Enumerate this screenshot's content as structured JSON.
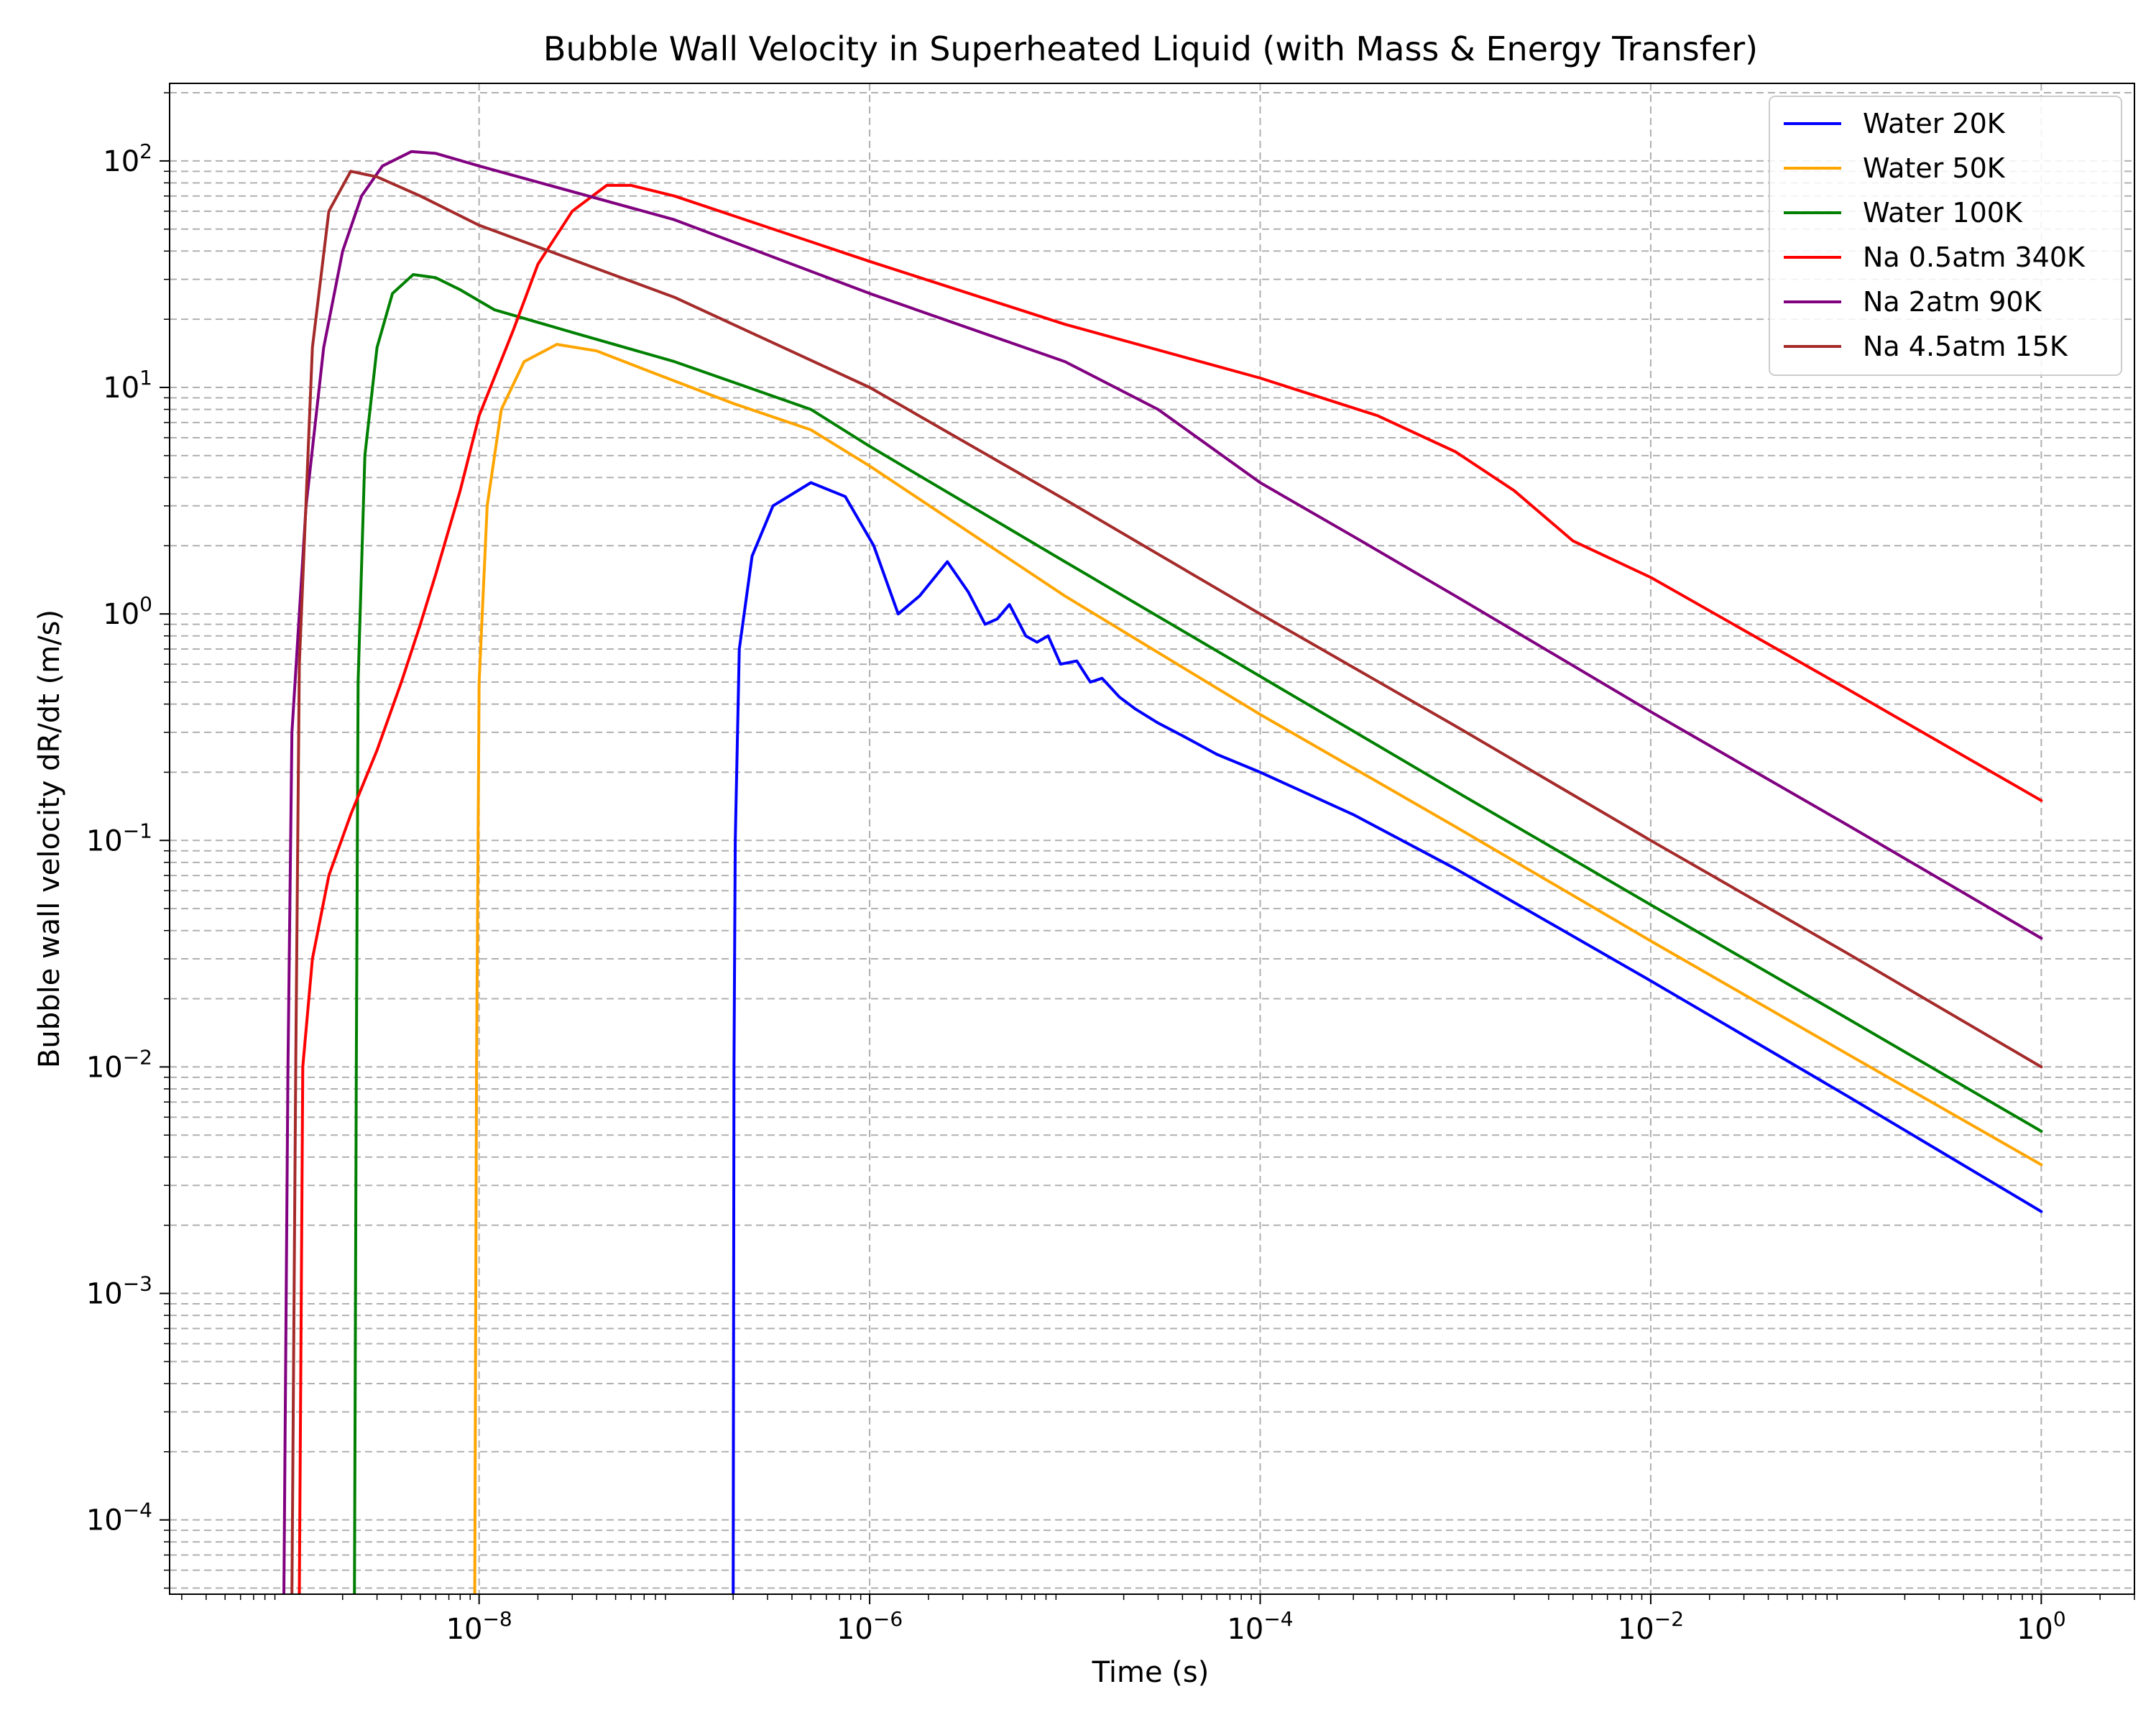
{
  "chart_data": {
    "type": "line",
    "title": "Bubble Wall Velocity in Superheated Liquid (with Mass & Energy Transfer)",
    "xlabel": "Time (s)",
    "ylabel": "Bubble wall velocity dR/dt (m/s)",
    "x_scale": "log",
    "y_scale": "log",
    "xlim": [
      2.6e-10,
      3.0
    ],
    "ylim": [
      4.7e-05,
      220
    ],
    "x_ticks": [
      {
        "value": 1e-08,
        "base": "10",
        "exp": "−8"
      },
      {
        "value": 1e-06,
        "base": "10",
        "exp": "−6"
      },
      {
        "value": 0.0001,
        "base": "10",
        "exp": "−4"
      },
      {
        "value": 0.01,
        "base": "10",
        "exp": "−2"
      },
      {
        "value": 1,
        "base": "10",
        "exp": "0"
      }
    ],
    "y_ticks": [
      {
        "value": 0.0001,
        "base": "10",
        "exp": "−4"
      },
      {
        "value": 0.001,
        "base": "10",
        "exp": "−3"
      },
      {
        "value": 0.01,
        "base": "10",
        "exp": "−2"
      },
      {
        "value": 0.1,
        "base": "10",
        "exp": "−1"
      },
      {
        "value": 1,
        "base": "10",
        "exp": "0"
      },
      {
        "value": 10,
        "base": "10",
        "exp": "1"
      },
      {
        "value": 100,
        "base": "10",
        "exp": "2"
      }
    ],
    "grid": true,
    "legend_position": "top-right",
    "series": [
      {
        "name": "Water 20K",
        "color": "#0000ff",
        "points": [
          [
            2e-07,
            4.7e-05
          ],
          [
            2.02e-07,
            0.01
          ],
          [
            2.05e-07,
            0.1
          ],
          [
            2.15e-07,
            0.7
          ],
          [
            2.5e-07,
            1.8
          ],
          [
            3.2e-07,
            3.0
          ],
          [
            5e-07,
            3.8
          ],
          [
            7.5e-07,
            3.3
          ],
          [
            1.05e-06,
            2.0
          ],
          [
            1.4e-06,
            1.0
          ],
          [
            1.8e-06,
            1.2
          ],
          [
            2.5e-06,
            1.7
          ],
          [
            3.2e-06,
            1.25
          ],
          [
            3.9e-06,
            0.9
          ],
          [
            4.5e-06,
            0.95
          ],
          [
            5.2e-06,
            1.1
          ],
          [
            6.3e-06,
            0.8
          ],
          [
            7.2e-06,
            0.75
          ],
          [
            8.2e-06,
            0.8
          ],
          [
            9.5e-06,
            0.6
          ],
          [
            1.15e-05,
            0.62
          ],
          [
            1.35e-05,
            0.5
          ],
          [
            1.55e-05,
            0.52
          ],
          [
            1.9e-05,
            0.43
          ],
          [
            2.3e-05,
            0.38
          ],
          [
            3e-05,
            0.33
          ],
          [
            4e-05,
            0.29
          ],
          [
            6e-05,
            0.24
          ],
          [
            0.0001,
            0.2
          ],
          [
            0.0003,
            0.13
          ],
          [
            0.001,
            0.075
          ],
          [
            0.01,
            0.024
          ],
          [
            0.1,
            0.0075
          ],
          [
            1.0,
            0.0023
          ]
        ]
      },
      {
        "name": "Water 50K",
        "color": "#ffa500",
        "points": [
          [
            9.5e-09,
            4.7e-05
          ],
          [
            9.7e-09,
            0.01
          ],
          [
            1e-08,
            0.5
          ],
          [
            1.1e-08,
            3.0
          ],
          [
            1.3e-08,
            8.0
          ],
          [
            1.7e-08,
            13.0
          ],
          [
            2.5e-08,
            15.5
          ],
          [
            4e-08,
            14.5
          ],
          [
            8e-08,
            11.5
          ],
          [
            2e-07,
            8.5
          ],
          [
            5e-07,
            6.5
          ],
          [
            1e-06,
            4.5
          ],
          [
            1e-05,
            1.2
          ],
          [
            0.0001,
            0.36
          ],
          [
            0.001,
            0.115
          ],
          [
            0.01,
            0.036
          ],
          [
            0.1,
            0.0115
          ],
          [
            1.0,
            0.0037
          ]
        ]
      },
      {
        "name": "Water 100K",
        "color": "#008000",
        "points": [
          [
            2.3e-09,
            4.7e-05
          ],
          [
            2.35e-09,
            0.01
          ],
          [
            2.4e-09,
            0.5
          ],
          [
            2.6e-09,
            5.0
          ],
          [
            3e-09,
            15.0
          ],
          [
            3.6e-09,
            26.0
          ],
          [
            4.6e-09,
            31.5
          ],
          [
            6e-09,
            30.5
          ],
          [
            8e-09,
            27.0
          ],
          [
            1.2e-08,
            22.0
          ],
          [
            3e-08,
            17.5
          ],
          [
            1e-07,
            13.0
          ],
          [
            5e-07,
            8.0
          ],
          [
            1e-06,
            5.5
          ],
          [
            1e-05,
            1.7
          ],
          [
            0.0001,
            0.53
          ],
          [
            0.001,
            0.165
          ],
          [
            0.01,
            0.052
          ],
          [
            0.1,
            0.0165
          ],
          [
            1.0,
            0.0052
          ]
        ]
      },
      {
        "name": "Na 0.5atm 340K",
        "color": "#ff0000",
        "points": [
          [
            1.2e-09,
            4.7e-05
          ],
          [
            1.25e-09,
            0.01
          ],
          [
            1.4e-09,
            0.03
          ],
          [
            1.7e-09,
            0.07
          ],
          [
            2.2e-09,
            0.13
          ],
          [
            3e-09,
            0.25
          ],
          [
            4e-09,
            0.5
          ],
          [
            5e-09,
            0.9
          ],
          [
            6e-09,
            1.5
          ],
          [
            8e-09,
            3.5
          ],
          [
            1e-08,
            7.5
          ],
          [
            1.5e-08,
            18.0
          ],
          [
            2e-08,
            35.0
          ],
          [
            3e-08,
            60.0
          ],
          [
            4.5e-08,
            78.0
          ],
          [
            6e-08,
            78.0
          ],
          [
            1e-07,
            70.0
          ],
          [
            1e-06,
            36.0
          ],
          [
            1e-05,
            19.0
          ],
          [
            0.0001,
            11.0
          ],
          [
            0.0004,
            7.5
          ],
          [
            0.001,
            5.2
          ],
          [
            0.002,
            3.5
          ],
          [
            0.004,
            2.1
          ],
          [
            0.01,
            1.45
          ],
          [
            0.1,
            0.47
          ],
          [
            1.0,
            0.15
          ]
        ]
      },
      {
        "name": "Na 2atm 90K",
        "color": "#800080",
        "points": [
          [
            1e-09,
            4.7e-05
          ],
          [
            1.05e-09,
            0.01
          ],
          [
            1.1e-09,
            0.3
          ],
          [
            1.3e-09,
            3.0
          ],
          [
            1.6e-09,
            15.0
          ],
          [
            2e-09,
            40.0
          ],
          [
            2.5e-09,
            70.0
          ],
          [
            3.2e-09,
            95.0
          ],
          [
            4.5e-09,
            110.0
          ],
          [
            6e-09,
            108.0
          ],
          [
            1e-08,
            95.0
          ],
          [
            1e-07,
            55.0
          ],
          [
            1e-06,
            26.0
          ],
          [
            1e-05,
            13.0
          ],
          [
            3e-05,
            8.0
          ],
          [
            0.0001,
            3.8
          ],
          [
            0.0003,
            2.2
          ],
          [
            0.001,
            1.2
          ],
          [
            0.01,
            0.37
          ],
          [
            0.1,
            0.118
          ],
          [
            1.0,
            0.037
          ]
        ]
      },
      {
        "name": "Na 4.5atm 15K",
        "color": "#a52a2a",
        "points": [
          [
            1.1e-09,
            4.7e-05
          ],
          [
            1.15e-09,
            0.01
          ],
          [
            1.2e-09,
            0.6
          ],
          [
            1.4e-09,
            15.0
          ],
          [
            1.7e-09,
            60.0
          ],
          [
            2.2e-09,
            90.0
          ],
          [
            3e-09,
            85.0
          ],
          [
            5e-09,
            70.0
          ],
          [
            1e-08,
            52.0
          ],
          [
            1e-07,
            25.0
          ],
          [
            1e-06,
            10.0
          ],
          [
            1e-05,
            3.2
          ],
          [
            0.0001,
            1.0
          ],
          [
            0.001,
            0.32
          ],
          [
            0.01,
            0.1
          ],
          [
            0.1,
            0.032
          ],
          [
            1.0,
            0.01
          ]
        ]
      }
    ]
  }
}
